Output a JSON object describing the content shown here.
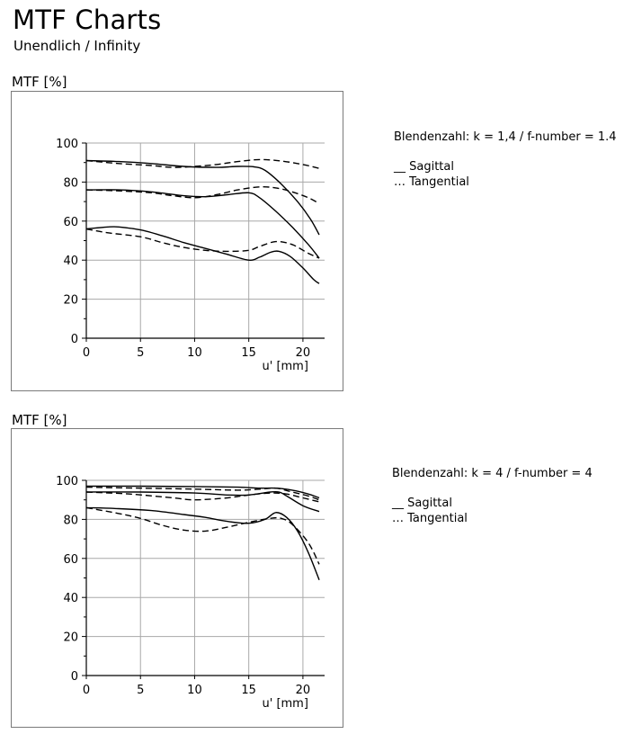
{
  "header": {
    "title": "MTF Charts",
    "subtitle": "Unendlich / Infinity"
  },
  "chart_data": [
    {
      "type": "line",
      "ylabel": "MTF [%]",
      "xlabel": "u' [mm]",
      "xlim": [
        0,
        22
      ],
      "ylim": [
        0,
        100
      ],
      "x_ticks": [
        0,
        5,
        10,
        15,
        20
      ],
      "y_ticks": [
        0,
        20,
        40,
        60,
        80,
        100
      ],
      "grid": true,
      "annotation": "Blendenzahl: k = 1,4 / f-number = 1.4",
      "legend": {
        "sagittal": "__ Sagittal",
        "tangential": "… Tangential"
      },
      "series": [
        {
          "style": "solid",
          "points": [
            [
              0,
              91
            ],
            [
              3,
              90.5
            ],
            [
              6,
              89.5
            ],
            [
              9,
              88
            ],
            [
              12,
              87.5
            ],
            [
              14,
              88
            ],
            [
              15.5,
              87.8
            ],
            [
              16.5,
              86
            ],
            [
              18,
              79
            ],
            [
              19.5,
              70
            ],
            [
              20.7,
              61
            ],
            [
              21.5,
              53
            ]
          ]
        },
        {
          "style": "dashed",
          "points": [
            [
              0,
              91
            ],
            [
              3,
              89.5
            ],
            [
              6,
              88.5
            ],
            [
              8,
              87.5
            ],
            [
              10,
              88
            ],
            [
              12,
              89
            ],
            [
              14,
              90.5
            ],
            [
              16,
              91.5
            ],
            [
              18,
              90.8
            ],
            [
              20,
              89
            ],
            [
              21.5,
              87
            ]
          ]
        },
        {
          "style": "solid",
          "points": [
            [
              0,
              76
            ],
            [
              3,
              76
            ],
            [
              6,
              75
            ],
            [
              9,
              73
            ],
            [
              11,
              72.5
            ],
            [
              13,
              73.5
            ],
            [
              15,
              74.5
            ],
            [
              16,
              72
            ],
            [
              17.5,
              65
            ],
            [
              19,
              57
            ],
            [
              20.5,
              48
            ],
            [
              21.5,
              41
            ]
          ]
        },
        {
          "style": "dashed",
          "points": [
            [
              0,
              76
            ],
            [
              3,
              75.5
            ],
            [
              6,
              74.5
            ],
            [
              8,
              73
            ],
            [
              10,
              72
            ],
            [
              12,
              73.5
            ],
            [
              14,
              76
            ],
            [
              16,
              77.5
            ],
            [
              17.5,
              77
            ],
            [
              19,
              75
            ],
            [
              20.5,
              72
            ],
            [
              21.5,
              69
            ]
          ]
        },
        {
          "style": "solid",
          "points": [
            [
              0,
              56
            ],
            [
              2,
              57
            ],
            [
              3,
              57
            ],
            [
              5,
              55.5
            ],
            [
              7,
              52.5
            ],
            [
              9,
              49
            ],
            [
              11,
              46
            ],
            [
              13,
              43
            ],
            [
              15,
              40
            ],
            [
              16,
              41.5
            ],
            [
              17,
              44
            ],
            [
              17.8,
              44.5
            ],
            [
              18.8,
              42
            ],
            [
              20,
              36
            ],
            [
              21,
              30
            ],
            [
              21.5,
              28
            ]
          ]
        },
        {
          "style": "dashed",
          "points": [
            [
              0,
              56
            ],
            [
              2,
              54
            ],
            [
              5,
              52
            ],
            [
              7,
              49
            ],
            [
              9,
              46.5
            ],
            [
              11,
              45
            ],
            [
              13,
              44.5
            ],
            [
              15,
              45
            ],
            [
              16,
              47
            ],
            [
              17.5,
              49.5
            ],
            [
              19,
              48
            ],
            [
              20.5,
              43.5
            ],
            [
              21.5,
              41
            ]
          ]
        }
      ]
    },
    {
      "type": "line",
      "ylabel": "MTF [%]",
      "xlabel": "u' [mm]",
      "xlim": [
        0,
        22
      ],
      "ylim": [
        0,
        100
      ],
      "x_ticks": [
        0,
        5,
        10,
        15,
        20
      ],
      "y_ticks": [
        0,
        20,
        40,
        60,
        80,
        100
      ],
      "grid": true,
      "annotation": "Blendenzahl: k = 4 / f-number = 4",
      "legend": {
        "sagittal": "__ Sagittal",
        "tangential": "… Tangential"
      },
      "series": [
        {
          "style": "solid",
          "points": [
            [
              0,
              97
            ],
            [
              5,
              97
            ],
            [
              10,
              96.8
            ],
            [
              14,
              96.5
            ],
            [
              16,
              96
            ],
            [
              17.5,
              96
            ],
            [
              19,
              95
            ],
            [
              20.5,
              93
            ],
            [
              21.5,
              91
            ]
          ]
        },
        {
          "style": "dashed",
          "points": [
            [
              0,
              96.5
            ],
            [
              5,
              96
            ],
            [
              10,
              95.5
            ],
            [
              14,
              95
            ],
            [
              16,
              95.5
            ],
            [
              17.5,
              96
            ],
            [
              19,
              94
            ],
            [
              20.5,
              92
            ],
            [
              21.5,
              90
            ]
          ]
        },
        {
          "style": "solid",
          "points": [
            [
              0,
              94
            ],
            [
              5,
              94
            ],
            [
              10,
              93.5
            ],
            [
              13,
              92.5
            ],
            [
              15,
              92.5
            ],
            [
              17,
              94
            ],
            [
              17.8,
              94
            ],
            [
              18.5,
              92
            ],
            [
              20,
              87
            ],
            [
              21.5,
              84
            ]
          ]
        },
        {
          "style": "dashed",
          "points": [
            [
              0,
              94
            ],
            [
              4,
              93
            ],
            [
              8,
              91
            ],
            [
              10,
              90
            ],
            [
              13,
              91
            ],
            [
              15,
              92.5
            ],
            [
              17,
              93.5
            ],
            [
              18.5,
              93
            ],
            [
              20,
              91
            ],
            [
              21.5,
              89
            ]
          ]
        },
        {
          "style": "solid",
          "points": [
            [
              0,
              86
            ],
            [
              3,
              85.5
            ],
            [
              6,
              84.5
            ],
            [
              9,
              82.5
            ],
            [
              11,
              81
            ],
            [
              13,
              79
            ],
            [
              15,
              78
            ],
            [
              16.5,
              80
            ],
            [
              17.5,
              83.5
            ],
            [
              18.5,
              81
            ],
            [
              19.5,
              74
            ],
            [
              20.5,
              63
            ],
            [
              21.5,
              49
            ]
          ]
        },
        {
          "style": "dashed",
          "points": [
            [
              0,
              86
            ],
            [
              3,
              83
            ],
            [
              5,
              80.5
            ],
            [
              7,
              77
            ],
            [
              9,
              74.5
            ],
            [
              11,
              74
            ],
            [
              13,
              76
            ],
            [
              15,
              78.5
            ],
            [
              17,
              80.5
            ],
            [
              18,
              80.5
            ],
            [
              19,
              77.5
            ],
            [
              20.5,
              68
            ],
            [
              21.5,
              57
            ]
          ]
        }
      ]
    }
  ]
}
